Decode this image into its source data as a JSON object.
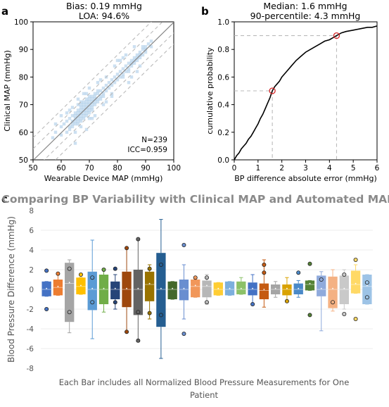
{
  "panel_a": {
    "letter": "a",
    "title_line1": "Bias: 0.19 mmHg",
    "title_line2": "LOA: 94.6%",
    "annotation_n": "N=239",
    "annotation_icc": "ICC=0.959"
  },
  "panel_b": {
    "letter": "b",
    "title_line1": "Median: 1.6 mmHg",
    "title_line2": "90-percentile: 4.3 mmHg"
  },
  "panel_c": {
    "letter": "c",
    "caption_line1": "Each Bar includes all Normalized Blood Pressure Measurements for One",
    "caption_line2": "Patient"
  },
  "colors": {
    "scatter": "#8fbbe0",
    "identity_line": "#888888",
    "loa_lines": "#bbbbbb",
    "cdf_line": "#000000",
    "marker": "#d62728",
    "title_c": "#8a8a8a"
  },
  "chart_data": [
    {
      "id": "a",
      "type": "scatter",
      "title": "Bias: 0.19 mmHg / LOA: 94.6%",
      "xlabel": "Wearable Device MAP (mmHg)",
      "ylabel": "Clinical MAP (mmHg)",
      "xlim": [
        50,
        100
      ],
      "ylim": [
        50,
        100
      ],
      "xticks": [
        50,
        60,
        70,
        80,
        90,
        100
      ],
      "yticks": [
        50,
        60,
        70,
        80,
        90,
        100
      ],
      "points": [
        [
          57,
          58
        ],
        [
          58,
          60
        ],
        [
          60,
          62
        ],
        [
          60,
          59
        ],
        [
          61,
          63
        ],
        [
          62,
          60
        ],
        [
          62,
          64
        ],
        [
          63,
          62
        ],
        [
          63,
          65
        ],
        [
          63,
          61
        ],
        [
          64,
          63
        ],
        [
          64,
          66
        ],
        [
          64,
          64
        ],
        [
          64,
          62
        ],
        [
          65,
          65
        ],
        [
          65,
          67
        ],
        [
          65,
          63
        ],
        [
          65,
          64
        ],
        [
          65,
          66
        ],
        [
          66,
          64
        ],
        [
          66,
          66
        ],
        [
          66,
          68
        ],
        [
          66,
          65
        ],
        [
          66,
          67
        ],
        [
          66,
          63
        ],
        [
          67,
          66
        ],
        [
          67,
          68
        ],
        [
          67,
          67
        ],
        [
          67,
          65
        ],
        [
          67,
          69
        ],
        [
          67,
          64
        ],
        [
          67,
          70
        ],
        [
          68,
          67
        ],
        [
          68,
          69
        ],
        [
          68,
          68
        ],
        [
          68,
          66
        ],
        [
          68,
          70
        ],
        [
          68,
          71
        ],
        [
          68,
          65
        ],
        [
          69,
          68
        ],
        [
          69,
          70
        ],
        [
          69,
          67
        ],
        [
          69,
          69
        ],
        [
          69,
          71
        ],
        [
          69,
          72
        ],
        [
          69,
          66
        ],
        [
          70,
          69
        ],
        [
          70,
          71
        ],
        [
          70,
          70
        ],
        [
          70,
          68
        ],
        [
          70,
          72
        ],
        [
          70,
          67
        ],
        [
          70,
          73
        ],
        [
          71,
          70
        ],
        [
          71,
          72
        ],
        [
          71,
          69
        ],
        [
          71,
          71
        ],
        [
          71,
          73
        ],
        [
          71,
          68
        ],
        [
          72,
          71
        ],
        [
          72,
          73
        ],
        [
          72,
          70
        ],
        [
          72,
          74
        ],
        [
          72,
          72
        ],
        [
          73,
          72
        ],
        [
          73,
          74
        ],
        [
          73,
          71
        ],
        [
          73,
          75
        ],
        [
          74,
          73
        ],
        [
          74,
          75
        ],
        [
          74,
          72
        ],
        [
          75,
          74
        ],
        [
          75,
          76
        ],
        [
          75,
          73
        ],
        [
          76,
          75
        ],
        [
          76,
          77
        ],
        [
          77,
          76
        ],
        [
          77,
          78
        ],
        [
          78,
          77
        ],
        [
          78,
          79
        ],
        [
          79,
          78
        ],
        [
          79,
          80
        ],
        [
          80,
          79
        ],
        [
          80,
          81
        ],
        [
          81,
          80
        ],
        [
          81,
          82
        ],
        [
          82,
          81
        ],
        [
          82,
          83
        ],
        [
          82,
          80
        ],
        [
          83,
          82
        ],
        [
          83,
          84
        ],
        [
          84,
          83
        ],
        [
          84,
          85
        ],
        [
          84,
          82
        ],
        [
          85,
          84
        ],
        [
          85,
          86
        ],
        [
          85,
          85
        ],
        [
          86,
          85
        ],
        [
          86,
          87
        ],
        [
          86,
          86
        ],
        [
          87,
          86
        ],
        [
          87,
          88
        ],
        [
          87,
          87
        ],
        [
          88,
          87
        ],
        [
          88,
          89
        ],
        [
          88,
          88
        ],
        [
          89,
          88
        ],
        [
          89,
          90
        ],
        [
          89,
          91
        ],
        [
          90,
          89
        ],
        [
          90,
          91
        ],
        [
          90,
          90
        ],
        [
          91,
          92
        ],
        [
          92,
          91
        ],
        [
          92,
          93
        ],
        [
          66,
          72
        ],
        [
          68,
          74
        ],
        [
          72,
          66
        ],
        [
          75,
          70
        ],
        [
          78,
          74
        ],
        [
          80,
          86
        ],
        [
          83,
          88
        ],
        [
          85,
          80
        ],
        [
          70,
          76
        ],
        [
          64,
          69
        ],
        [
          62,
          67
        ],
        [
          67,
          62
        ],
        [
          73,
          78
        ],
        [
          76,
          71
        ],
        [
          79,
          84
        ],
        [
          84,
          78
        ],
        [
          86,
          91
        ],
        [
          88,
          84
        ],
        [
          71,
          65
        ],
        [
          74,
          79
        ],
        [
          69,
          74
        ],
        [
          65,
          60
        ],
        [
          63,
          68
        ],
        [
          81,
          86
        ],
        [
          87,
          82
        ],
        [
          65,
          56
        ],
        [
          60,
          66
        ],
        [
          58,
          63
        ],
        [
          69,
          61
        ],
        [
          76,
          80
        ],
        [
          82,
          87
        ],
        [
          78,
          73
        ],
        [
          70,
          65
        ],
        [
          66,
          70
        ],
        [
          67,
          71
        ]
      ],
      "bias": 0.19,
      "loa_offsets": [
        -4,
        4,
        -8,
        8
      ],
      "annotations": [
        "N=239",
        "ICC=0.959"
      ]
    },
    {
      "id": "b",
      "type": "line",
      "title": "Median: 1.6 mmHg / 90-percentile: 4.3 mmHg",
      "xlabel": "BP difference absolute error (mmHg)",
      "ylabel": "cumulative probability",
      "xlim": [
        0,
        6
      ],
      "ylim": [
        0,
        1.0
      ],
      "xticks": [
        0,
        1,
        2,
        3,
        4,
        5,
        6
      ],
      "yticks": [
        0.0,
        0.2,
        0.4,
        0.6,
        0.8,
        1.0
      ],
      "x": [
        0,
        0.1,
        0.2,
        0.3,
        0.4,
        0.5,
        0.6,
        0.7,
        0.8,
        0.9,
        1.0,
        1.1,
        1.2,
        1.3,
        1.4,
        1.5,
        1.6,
        1.7,
        1.8,
        1.9,
        2.0,
        2.2,
        2.4,
        2.6,
        2.8,
        3.0,
        3.2,
        3.4,
        3.6,
        3.8,
        4.0,
        4.2,
        4.3,
        4.5,
        4.7,
        5.0,
        5.3,
        5.6,
        5.8,
        6.0
      ],
      "y": [
        0,
        0.03,
        0.05,
        0.08,
        0.1,
        0.12,
        0.15,
        0.17,
        0.2,
        0.23,
        0.26,
        0.3,
        0.33,
        0.37,
        0.41,
        0.45,
        0.5,
        0.53,
        0.55,
        0.57,
        0.6,
        0.64,
        0.68,
        0.72,
        0.75,
        0.78,
        0.8,
        0.82,
        0.84,
        0.86,
        0.87,
        0.89,
        0.9,
        0.92,
        0.93,
        0.94,
        0.95,
        0.96,
        0.96,
        0.97
      ],
      "markers": [
        [
          1.6,
          0.5
        ],
        [
          4.3,
          0.9
        ]
      ]
    },
    {
      "id": "c",
      "type": "box",
      "title": "Comparing BP Variability with Clinical MAP and Automated MAP",
      "ylabel": "Blood Pressure Difference (mmHg)",
      "ylim": [
        -8,
        8
      ],
      "yticks": [
        -8,
        -6,
        -4,
        -2,
        0,
        2,
        4,
        6,
        8
      ],
      "boxes": [
        {
          "color": "#4472c4",
          "q1": -0.7,
          "med": 0.0,
          "q3": 0.8,
          "lo": -0.7,
          "hi": 0.8,
          "out": [
            1.9,
            -2.0
          ]
        },
        {
          "color": "#ed7d31",
          "q1": -0.6,
          "med": 0.2,
          "q3": 1.0,
          "lo": -0.6,
          "hi": 1.6,
          "out": [
            1.6
          ]
        },
        {
          "color": "#a5a5a5",
          "q1": -3.3,
          "med": 0.6,
          "q3": 2.7,
          "lo": -4.4,
          "hi": 3.0,
          "out": [
            2.1,
            -2.3
          ]
        },
        {
          "color": "#ffc000",
          "q1": -0.5,
          "med": 0.3,
          "q3": 1.2,
          "lo": -0.5,
          "hi": 1.2,
          "out": [
            1.5
          ]
        },
        {
          "color": "#5b9bd5",
          "q1": -2.1,
          "med": 0.0,
          "q3": 1.8,
          "lo": -5.0,
          "hi": 5.0,
          "out": [
            1.2,
            -1.3
          ]
        },
        {
          "color": "#70ad47",
          "q1": -1.5,
          "med": 0.0,
          "q3": 1.5,
          "lo": -2.3,
          "hi": 2.0,
          "out": [
            2.0
          ]
        },
        {
          "color": "#264478",
          "q1": -1.0,
          "med": 0.0,
          "q3": 0.8,
          "lo": -2.0,
          "hi": 1.5,
          "out": [
            2.1,
            -1.3
          ]
        },
        {
          "color": "#9e480e",
          "q1": -1.8,
          "med": 0.0,
          "q3": 1.8,
          "lo": -4.3,
          "hi": 4.2,
          "out": [
            4.2,
            -4.3
          ]
        },
        {
          "color": "#636363",
          "q1": -2.6,
          "med": 0.0,
          "q3": 2.0,
          "lo": -5.3,
          "hi": 5.0,
          "out": [
            5.1,
            -5.2,
            -2.3
          ]
        },
        {
          "color": "#997300",
          "q1": -1.2,
          "med": 0.5,
          "q3": 1.8,
          "lo": -3.0,
          "hi": 2.5,
          "out": [
            2.1,
            -2.4
          ]
        },
        {
          "color": "#255e91",
          "q1": -3.8,
          "med": 0.0,
          "q3": 3.7,
          "lo": -7.0,
          "hi": 7.1,
          "out": [
            2.5,
            -2.6
          ]
        },
        {
          "color": "#43682b",
          "q1": -1.0,
          "med": 0.0,
          "q3": 0.8,
          "lo": -1.0,
          "hi": 0.8,
          "out": []
        },
        {
          "color": "#698ed0",
          "q1": -1.1,
          "med": 0.0,
          "q3": 1.0,
          "lo": -3.0,
          "hi": 2.5,
          "out": [
            4.5,
            -4.5
          ]
        },
        {
          "color": "#f1975a",
          "q1": -0.8,
          "med": 0.3,
          "q3": 1.0,
          "lo": -0.8,
          "hi": 1.0,
          "out": [
            1.2
          ]
        },
        {
          "color": "#b7b7b7",
          "q1": -0.8,
          "med": 0.3,
          "q3": 0.9,
          "lo": -1.5,
          "hi": 1.5,
          "out": [
            -1.3,
            1.2
          ]
        },
        {
          "color": "#ffcd33",
          "q1": -0.6,
          "med": 0.0,
          "q3": 0.7,
          "lo": -0.6,
          "hi": 0.7,
          "out": []
        },
        {
          "color": "#7cafdd",
          "q1": -0.6,
          "med": 0.0,
          "q3": 0.8,
          "lo": -0.6,
          "hi": 0.8,
          "out": []
        },
        {
          "color": "#8cc168",
          "q1": -0.5,
          "med": 0.0,
          "q3": 0.8,
          "lo": -0.5,
          "hi": 1.2,
          "out": []
        },
        {
          "color": "#4472c4",
          "q1": -0.6,
          "med": 0.0,
          "q3": 0.7,
          "lo": -1.6,
          "hi": 1.5,
          "out": [
            -1.5
          ]
        },
        {
          "color": "#c55a11",
          "q1": -1.0,
          "med": -0.1,
          "q3": 0.6,
          "lo": -1.8,
          "hi": 3.0,
          "out": [
            1.7,
            2.5
          ]
        },
        {
          "color": "#a5a5a5",
          "q1": -0.5,
          "med": 0.0,
          "q3": 0.5,
          "lo": -0.8,
          "hi": 0.8,
          "out": []
        },
        {
          "color": "#d9a200",
          "q1": -0.6,
          "med": 0.0,
          "q3": 0.5,
          "lo": -1.2,
          "hi": 1.2,
          "out": [
            -1.2
          ]
        },
        {
          "color": "#4a89c8",
          "q1": -0.5,
          "med": 0.0,
          "q3": 0.6,
          "lo": -0.8,
          "hi": 0.9,
          "out": [
            1.7
          ]
        },
        {
          "color": "#548235",
          "q1": -0.1,
          "med": 0.5,
          "q3": 0.9,
          "lo": -0.1,
          "hi": 0.9,
          "out": [
            2.6,
            -2.6
          ]
        },
        {
          "color": "#8faadc",
          "q1": -0.7,
          "med": 0.0,
          "q3": 1.4,
          "lo": -4.2,
          "hi": 1.8,
          "out": [
            1.0
          ]
        },
        {
          "color": "#f4b183",
          "q1": -1.9,
          "med": 0.0,
          "q3": 1.3,
          "lo": -2.2,
          "hi": 2.0,
          "out": [
            -1.3
          ]
        },
        {
          "color": "#c9c9c9",
          "q1": -1.5,
          "med": 0.0,
          "q3": 1.4,
          "lo": -2.0,
          "hi": 2.0,
          "out": [
            1.5,
            -2.5
          ]
        },
        {
          "color": "#ffd966",
          "q1": -0.4,
          "med": 0.5,
          "q3": 1.9,
          "lo": -0.4,
          "hi": 2.5,
          "out": [
            3.0,
            -3.0
          ]
        },
        {
          "color": "#9dc3e6",
          "q1": -1.5,
          "med": 0.3,
          "q3": 1.5,
          "lo": -1.5,
          "hi": 1.5,
          "out": [
            0.7,
            -0.8
          ]
        }
      ]
    }
  ]
}
